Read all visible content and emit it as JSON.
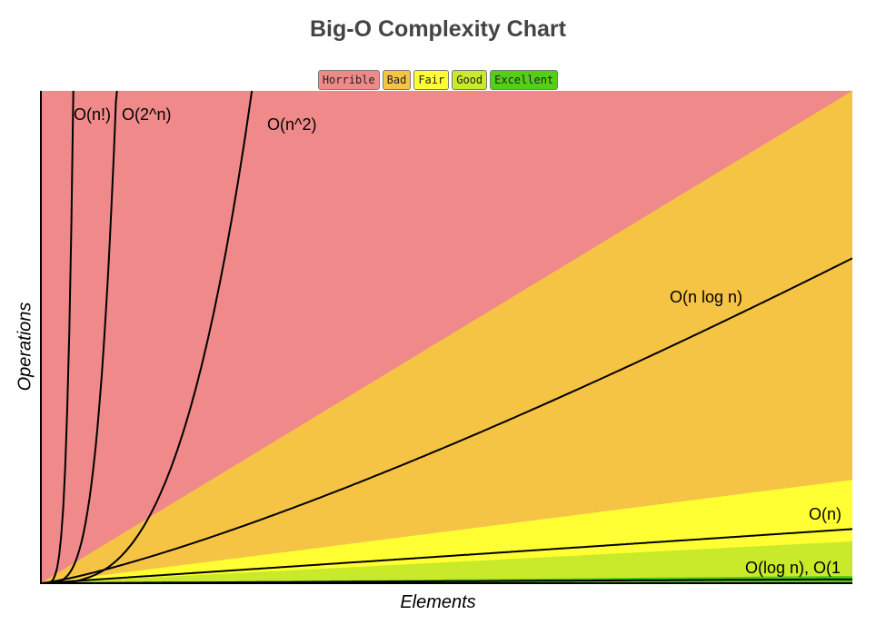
{
  "chart_data": {
    "type": "area",
    "title": "Big-O Complexity Chart",
    "xlabel": "Elements",
    "ylabel": "Operations",
    "legend": {
      "placement": "top-center",
      "items": [
        {
          "label": "Horrible",
          "color": "#f08a8a"
        },
        {
          "label": "Bad",
          "color": "#f6c445"
        },
        {
          "label": "Fair",
          "color": "#ffff33"
        },
        {
          "label": "Good",
          "color": "#c8ea2a"
        },
        {
          "label": "Excellent",
          "color": "#53d016"
        }
      ]
    },
    "xlim": [
      0,
      100
    ],
    "ylim": [
      0,
      1000
    ],
    "grid": false,
    "regions": [
      {
        "name": "Horrible",
        "color": "#f08a8a"
      },
      {
        "name": "Bad",
        "color": "#f6c445"
      },
      {
        "name": "Fair",
        "color": "#ffff33"
      },
      {
        "name": "Good",
        "color": "#c8ea2a"
      },
      {
        "name": "Excellent",
        "color": "#53d016"
      }
    ],
    "curves": [
      {
        "label": "O(n!)",
        "function": "factorial"
      },
      {
        "label": "O(2^n)",
        "function": "exponential"
      },
      {
        "label": "O(n^2)",
        "function": "quadratic"
      },
      {
        "label": "O(n log n)",
        "function": "nlogn"
      },
      {
        "label": "O(n)",
        "function": "linear"
      },
      {
        "label": "O(log n), O(1",
        "function": "log_and_constant"
      }
    ]
  }
}
